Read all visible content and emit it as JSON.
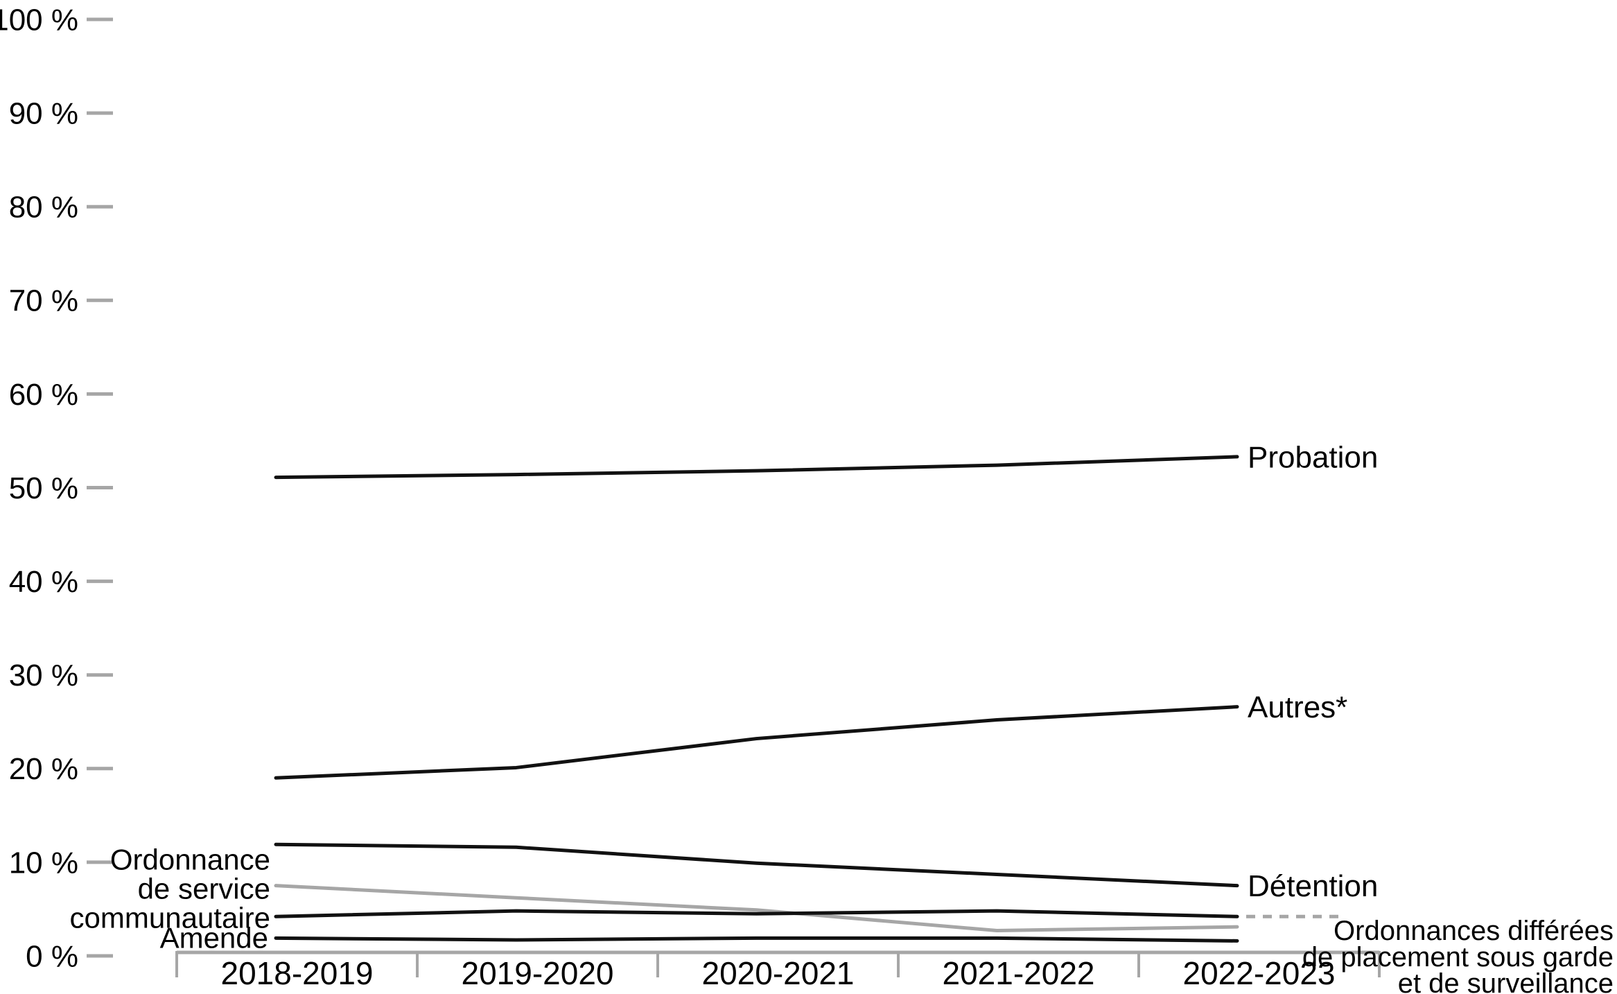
{
  "chart_data": {
    "type": "line",
    "title": "",
    "categories": [
      "2018-2019",
      "2019-2020",
      "2020-2021",
      "2021-2022",
      "2022-2023"
    ],
    "unit": "%",
    "grid": false,
    "legend_position": "inline-end-labels",
    "y_axis": {
      "min": 0,
      "max": 100,
      "step": 10,
      "tick_labels": [
        "100 %",
        "90 %",
        "80 %",
        "70 %",
        "60 %",
        "50 %",
        "40 %",
        "30 %",
        "20 %",
        "10 %",
        "0 %"
      ]
    },
    "series": [
      {
        "name": "Probation",
        "values": [
          51.1,
          51.4,
          51.8,
          52.4,
          53.3
        ],
        "color": "#111111",
        "style": "solid"
      },
      {
        "name": "Autres*",
        "values": [
          19.0,
          20.1,
          23.2,
          25.2,
          26.6
        ],
        "color": "#111111",
        "style": "solid"
      },
      {
        "name": "Détention",
        "values": [
          11.9,
          11.6,
          9.9,
          8.7,
          7.5
        ],
        "color": "#111111",
        "style": "solid"
      },
      {
        "name": "Ordonnance de service communautaire",
        "values": [
          7.5,
          6.2,
          4.9,
          2.7,
          3.1
        ],
        "color": "#a6a6a6",
        "style": "solid"
      },
      {
        "name": "Ordonnances différées de placement sous garde et de surveillance",
        "values": [
          4.2,
          4.8,
          4.5,
          4.8,
          4.2
        ],
        "color": "#111111",
        "style": "solid",
        "label_connector": "dashed"
      },
      {
        "name": "Amende",
        "values": [
          1.9,
          1.7,
          1.9,
          1.9,
          1.6
        ],
        "color": "#111111",
        "style": "solid"
      }
    ]
  },
  "labels": {
    "probation": "Probation",
    "autres": "Autres*",
    "detention": "Détention",
    "osc_lines": [
      "Ordonnance",
      "de service",
      "communautaire"
    ],
    "odpgs_lines": [
      "Ordonnances différées",
      "de placement sous garde",
      "et de surveillance"
    ],
    "amende": "Amende"
  },
  "colors": {
    "line_black": "#111111",
    "line_gray": "#a6a6a6",
    "axis_gray": "#a6a6a6",
    "text": "#000000",
    "background": "#ffffff"
  }
}
